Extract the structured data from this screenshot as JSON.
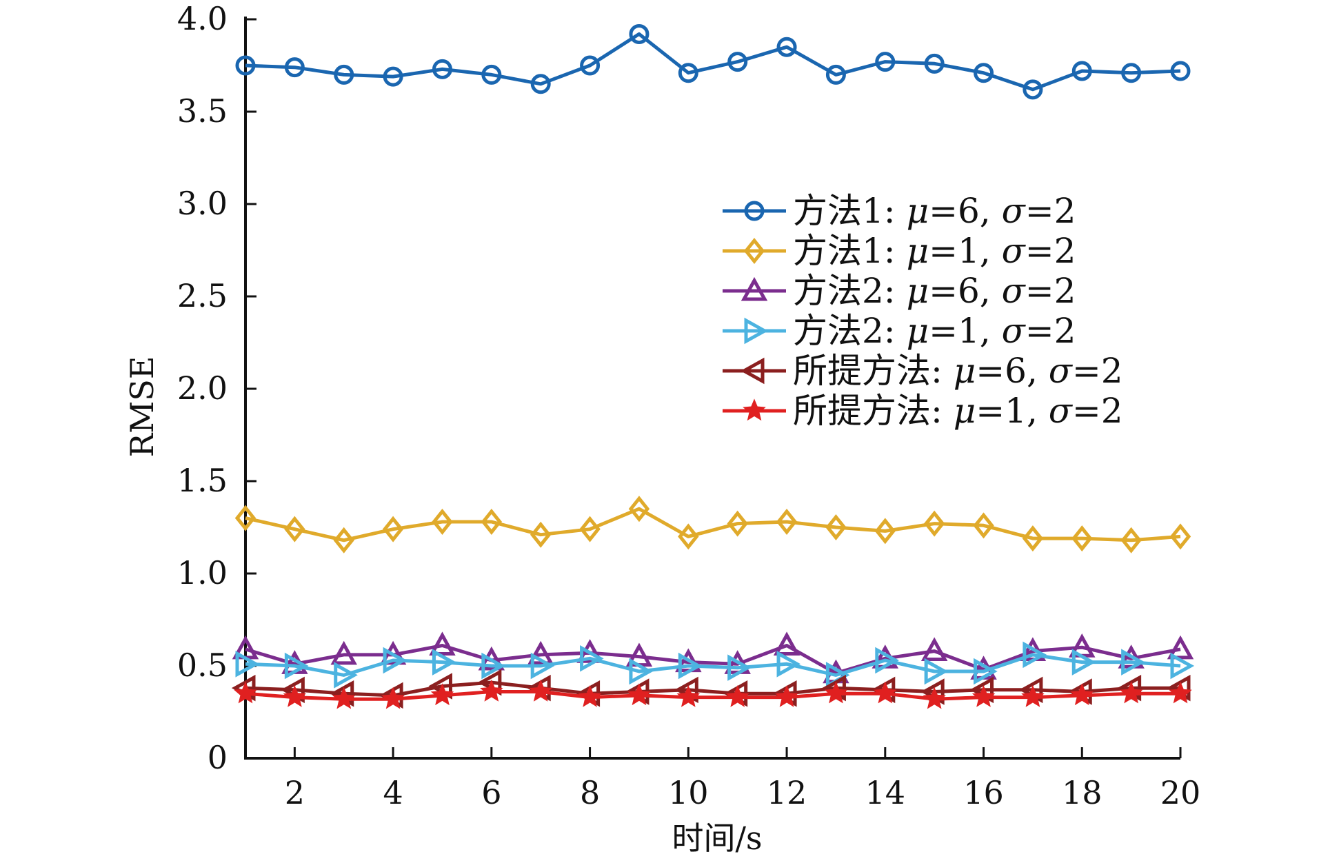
{
  "chart_data": {
    "type": "line",
    "title": "",
    "xlabel": "时间/s",
    "ylabel": "RMSE",
    "xlim": [
      1,
      20
    ],
    "ylim": [
      0,
      4.0
    ],
    "x": [
      1,
      2,
      3,
      4,
      5,
      6,
      7,
      8,
      9,
      10,
      11,
      12,
      13,
      14,
      15,
      16,
      17,
      18,
      19,
      20
    ],
    "xticks": [
      "2",
      "4",
      "6",
      "8",
      "10",
      "12",
      "14",
      "16",
      "18",
      "20"
    ],
    "yticks": [
      "0",
      "0.5",
      "1.0",
      "1.5",
      "2.0",
      "2.5",
      "3.0",
      "3.5",
      "4.0"
    ],
    "grid": false,
    "legend_position": "center-right",
    "series": [
      {
        "name": "方法1: μ=6, σ=2",
        "label_prefix": "方法1: ",
        "label_mu": "=6, ",
        "label_sigma": "=2",
        "color": "#1a66b0",
        "marker": "circle",
        "values": [
          3.75,
          3.74,
          3.7,
          3.69,
          3.73,
          3.7,
          3.65,
          3.75,
          3.92,
          3.71,
          3.77,
          3.85,
          3.7,
          3.77,
          3.76,
          3.71,
          3.62,
          3.72,
          3.71,
          3.72
        ]
      },
      {
        "name": "方法1: μ=1, σ=2",
        "label_prefix": "方法1: ",
        "label_mu": "=1, ",
        "label_sigma": "=2",
        "color": "#e0aa2b",
        "marker": "diamond",
        "values": [
          1.3,
          1.24,
          1.18,
          1.24,
          1.28,
          1.28,
          1.21,
          1.24,
          1.35,
          1.2,
          1.27,
          1.28,
          1.25,
          1.23,
          1.27,
          1.26,
          1.19,
          1.19,
          1.18,
          1.2
        ]
      },
      {
        "name": "方法2: μ=6, σ=2",
        "label_prefix": "方法2: ",
        "label_mu": "=6, ",
        "label_sigma": "=2",
        "color": "#7b2d8e",
        "marker": "triangle-up",
        "values": [
          0.59,
          0.51,
          0.56,
          0.56,
          0.61,
          0.53,
          0.56,
          0.57,
          0.55,
          0.52,
          0.51,
          0.61,
          0.46,
          0.54,
          0.58,
          0.48,
          0.58,
          0.6,
          0.54,
          0.59
        ]
      },
      {
        "name": "方法2: μ=1, σ=2",
        "label_prefix": "方法2: ",
        "label_mu": "=1, ",
        "label_sigma": "=2",
        "color": "#4cb3e0",
        "marker": "triangle-right",
        "values": [
          0.51,
          0.5,
          0.45,
          0.53,
          0.52,
          0.5,
          0.5,
          0.54,
          0.47,
          0.5,
          0.49,
          0.51,
          0.45,
          0.53,
          0.47,
          0.47,
          0.56,
          0.52,
          0.52,
          0.5
        ]
      },
      {
        "name": "所提方法: μ=6, σ=2",
        "label_prefix": "所提方法: ",
        "label_mu": "=6, ",
        "label_sigma": "=2",
        "color": "#8b1f1f",
        "marker": "triangle-left",
        "values": [
          0.38,
          0.37,
          0.35,
          0.34,
          0.39,
          0.41,
          0.38,
          0.35,
          0.36,
          0.37,
          0.35,
          0.35,
          0.38,
          0.37,
          0.36,
          0.37,
          0.37,
          0.36,
          0.38,
          0.38
        ]
      },
      {
        "name": "所提方法: μ=1, σ=2",
        "label_prefix": "所提方法: ",
        "label_mu": "=1, ",
        "label_sigma": "=2",
        "color": "#e02020",
        "marker": "star",
        "values": [
          0.35,
          0.33,
          0.32,
          0.32,
          0.34,
          0.36,
          0.36,
          0.33,
          0.34,
          0.33,
          0.33,
          0.33,
          0.35,
          0.35,
          0.32,
          0.33,
          0.33,
          0.34,
          0.35,
          0.35
        ]
      }
    ]
  }
}
